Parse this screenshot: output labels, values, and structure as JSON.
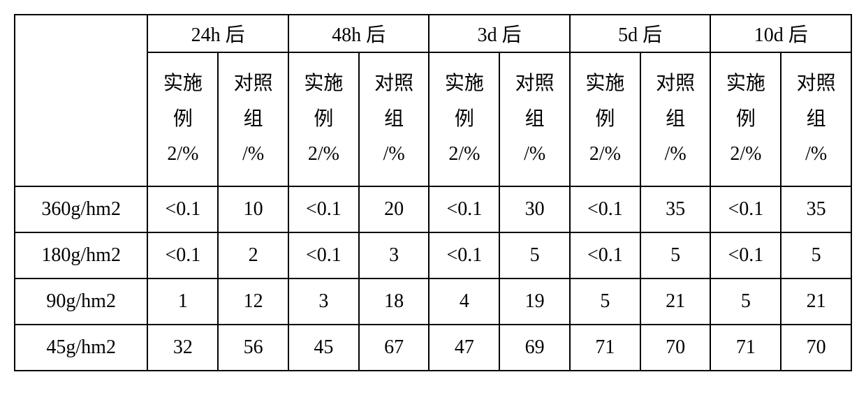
{
  "table": {
    "type": "table",
    "border_color": "#000000",
    "background_color": "#ffffff",
    "text_color": "#000000",
    "font_family": "SimSun",
    "header_fontsize": 28,
    "cell_fontsize": 28,
    "border_width": 2,
    "row_label_width": 190,
    "data_col_width": 100,
    "time_header_height": 52,
    "sub_header_height": 190,
    "data_row_height": 64,
    "time_periods": [
      "24h 后",
      "48h 后",
      "3d 后",
      "5d 后",
      "10d 后"
    ],
    "sub_header_exp_line1": "实施",
    "sub_header_exp_line2": "例",
    "sub_header_exp_line3": "2/%",
    "sub_header_ctrl_line1": "对照",
    "sub_header_ctrl_line2": "组",
    "sub_header_ctrl_line3": "/%",
    "row_labels": [
      "360g/hm2",
      "180g/hm2",
      "90g/hm2",
      "45g/hm2"
    ],
    "rows": [
      [
        "<0.1",
        "10",
        "<0.1",
        "20",
        "<0.1",
        "30",
        "<0.1",
        "35",
        "<0.1",
        "35"
      ],
      [
        "<0.1",
        "2",
        "<0.1",
        "3",
        "<0.1",
        "5",
        "<0.1",
        "5",
        "<0.1",
        "5"
      ],
      [
        "1",
        "12",
        "3",
        "18",
        "4",
        "19",
        "5",
        "21",
        "5",
        "21"
      ],
      [
        "32",
        "56",
        "45",
        "67",
        "47",
        "69",
        "71",
        "70",
        "71",
        "70"
      ]
    ]
  }
}
